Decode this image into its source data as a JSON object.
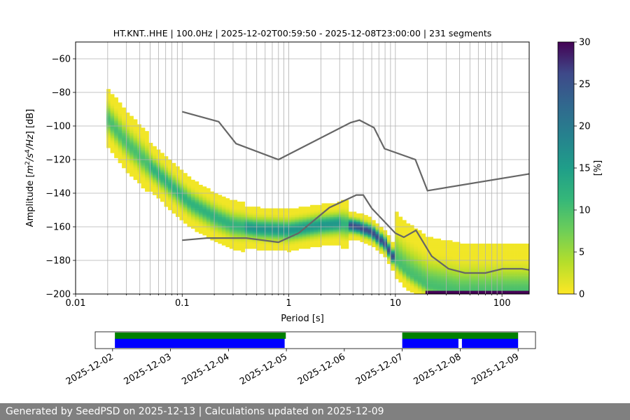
{
  "chart_data": {
    "type": "heatmap",
    "title": "HT.KNT..HHE | 100.0Hz | 2025-12-02T00:59:50 - 2025-12-08T23:00:00 | 231 segments",
    "xlabel": "Period [s]",
    "ylabel_parts": [
      "Amplitude [",
      "m",
      "2",
      "/s",
      "4",
      "/Hz",
      "] [dB]"
    ],
    "x_scale": "log",
    "xlim": [
      0.01,
      180
    ],
    "ylim": [
      -200,
      -50
    ],
    "x_ticks": [
      {
        "v": 0.01,
        "label": "0.01"
      },
      {
        "v": 0.1,
        "label": "0.1"
      },
      {
        "v": 1,
        "label": "1"
      },
      {
        "v": 10,
        "label": "10"
      },
      {
        "v": 100,
        "label": "100"
      }
    ],
    "y_ticks": [
      {
        "v": -60,
        "label": "−60"
      },
      {
        "v": -80,
        "label": "−80"
      },
      {
        "v": -100,
        "label": "−100"
      },
      {
        "v": -120,
        "label": "−120"
      },
      {
        "v": -140,
        "label": "−140"
      },
      {
        "v": -160,
        "label": "−160"
      },
      {
        "v": -180,
        "label": "−180"
      },
      {
        "v": -200,
        "label": "−200"
      }
    ],
    "grid": true,
    "colorbar": {
      "label": "[%]",
      "range": [
        0,
        30
      ],
      "ticks": [
        {
          "v": 0,
          "label": "0"
        },
        {
          "v": 5,
          "label": "5"
        },
        {
          "v": 10,
          "label": "10"
        },
        {
          "v": 15,
          "label": "15"
        },
        {
          "v": 20,
          "label": "20"
        },
        {
          "v": 25,
          "label": "25"
        },
        {
          "v": 30,
          "label": "30"
        }
      ],
      "colormap": "viridis_r"
    },
    "mode_ridge": [
      {
        "x": 0.02,
        "y": -96
      },
      {
        "x": 0.03,
        "y": -110
      },
      {
        "x": 0.05,
        "y": -124
      },
      {
        "x": 0.08,
        "y": -136
      },
      {
        "x": 0.12,
        "y": -146
      },
      {
        "x": 0.2,
        "y": -154
      },
      {
        "x": 0.3,
        "y": -159
      },
      {
        "x": 0.5,
        "y": -161
      },
      {
        "x": 1,
        "y": -162
      },
      {
        "x": 2,
        "y": -159
      },
      {
        "x": 3,
        "y": -158
      },
      {
        "x": 4.5,
        "y": -160
      },
      {
        "x": 6,
        "y": -163
      },
      {
        "x": 8,
        "y": -170
      },
      {
        "x": 10,
        "y": -180
      },
      {
        "x": 13,
        "y": -187
      },
      {
        "x": 20,
        "y": -195
      },
      {
        "x": 40,
        "y": -199
      },
      {
        "x": 180,
        "y": -199
      }
    ],
    "noise_models": [
      {
        "name": "high",
        "points": [
          {
            "x": 0.1,
            "y": -91.5
          },
          {
            "x": 0.22,
            "y": -97.4
          },
          {
            "x": 0.32,
            "y": -110.5
          },
          {
            "x": 0.8,
            "y": -120
          },
          {
            "x": 3.8,
            "y": -98
          },
          {
            "x": 4.6,
            "y": -96.5
          },
          {
            "x": 6.3,
            "y": -101
          },
          {
            "x": 7.9,
            "y": -113.5
          },
          {
            "x": 15.4,
            "y": -120
          },
          {
            "x": 20,
            "y": -138.5
          },
          {
            "x": 180,
            "y": -128.5
          }
        ]
      },
      {
        "name": "low",
        "points": [
          {
            "x": 0.1,
            "y": -168
          },
          {
            "x": 0.17,
            "y": -166.7
          },
          {
            "x": 0.4,
            "y": -166.7
          },
          {
            "x": 0.8,
            "y": -169.2
          },
          {
            "x": 1.24,
            "y": -163.7
          },
          {
            "x": 2.4,
            "y": -148.6
          },
          {
            "x": 4.3,
            "y": -141.1
          },
          {
            "x": 5,
            "y": -141.1
          },
          {
            "x": 6,
            "y": -149
          },
          {
            "x": 10,
            "y": -163.8
          },
          {
            "x": 12,
            "y": -166.2
          },
          {
            "x": 15.6,
            "y": -162.1
          },
          {
            "x": 21.9,
            "y": -177.5
          },
          {
            "x": 31.6,
            "y": -185
          },
          {
            "x": 45,
            "y": -187.5
          },
          {
            "x": 70,
            "y": -187.5
          },
          {
            "x": 101,
            "y": -185
          },
          {
            "x": 154,
            "y": -185
          },
          {
            "x": 180,
            "y": -185.7
          }
        ]
      }
    ],
    "timeline": {
      "date_ticks": [
        "2025-12-02",
        "2025-12-03",
        "2025-12-04",
        "2025-12-05",
        "2025-12-06",
        "2025-12-07",
        "2025-12-08",
        "2025-12-09"
      ],
      "start_day_offset": -0.3,
      "end_day_offset": 7.3,
      "available": [
        {
          "start": 0.04,
          "end": 2.99
        }
      ],
      "used": [
        {
          "start": 0.04,
          "end": 2.97
        },
        {
          "start": 5.0,
          "end": 5.97
        },
        {
          "start": 6.03,
          "end": 7.0
        }
      ],
      "available_2": [
        {
          "start": 5.0,
          "end": 7.0
        }
      ],
      "colors": {
        "available": "#008000",
        "used": "#0000ff"
      }
    },
    "line_color": "#666666"
  },
  "footer_text": "Generated by SeedPSD on 2025-12-13 | Calculations updated on 2025-12-09"
}
